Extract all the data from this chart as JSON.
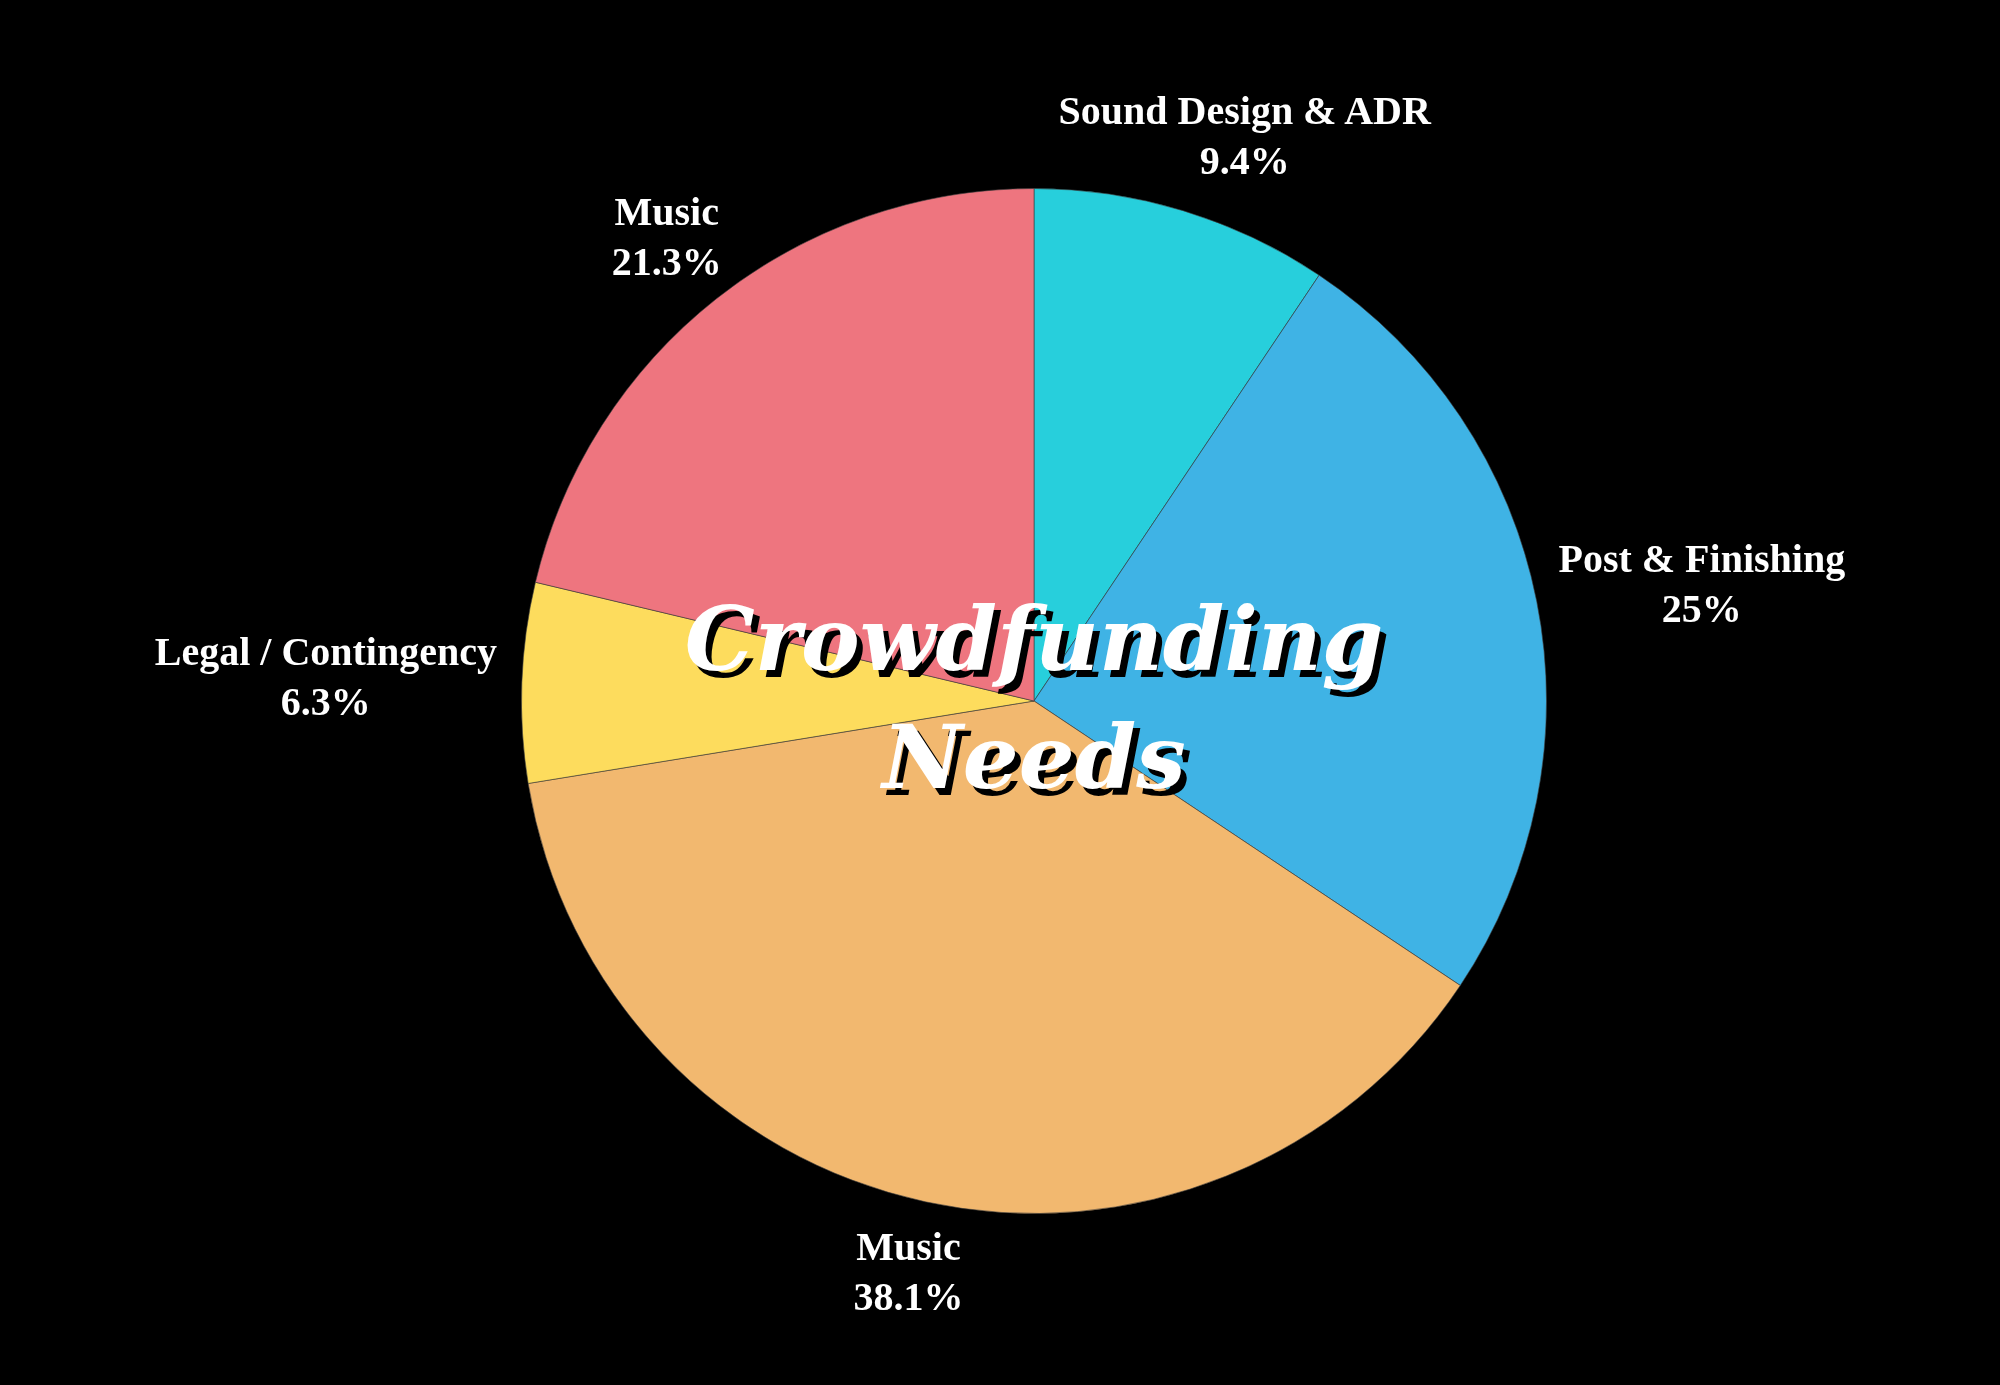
{
  "chart_data": {
    "type": "pie",
    "title": "Crowdfunding Needs",
    "categories": [
      "Sound Design & ADR",
      "Post & Finishing",
      "Music",
      "Legal / Contingency",
      "Music"
    ],
    "values": [
      9.4,
      25,
      38.1,
      6.3,
      21.3
    ],
    "value_labels": [
      "9.4%",
      "25%",
      "38.1%",
      "6.3%",
      "21.3%"
    ],
    "colors": [
      "#27cfdc",
      "#3fb3e5",
      "#f2b86f",
      "#fddc5d",
      "#ee757f"
    ]
  }
}
